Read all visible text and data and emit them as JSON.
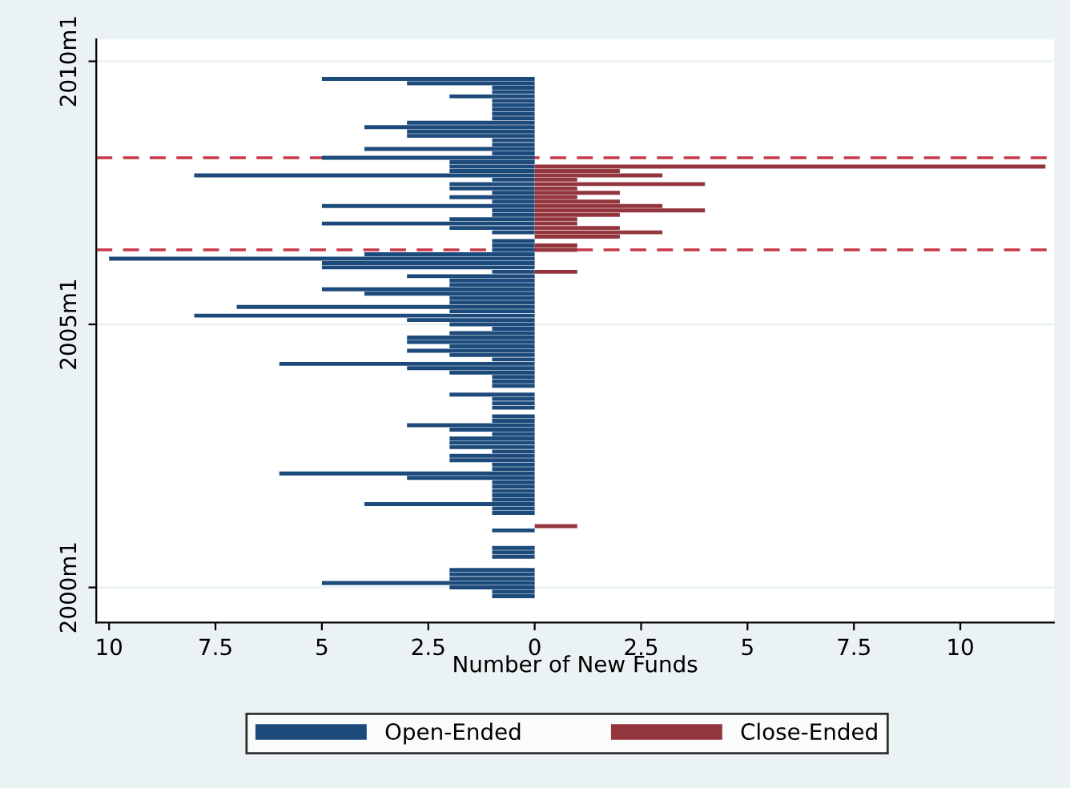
{
  "chart_data": {
    "type": "bar",
    "orientation": "horizontal",
    "xlabel": "Number of New Funds",
    "x": [
      "1999-11",
      "1999-12",
      "2000-01",
      "2000-02",
      "2000-03",
      "2000-04",
      "2000-05",
      "2000-06",
      "2000-07",
      "2000-08",
      "2000-09",
      "2000-10",
      "2000-11",
      "2000-12",
      "2001-01",
      "2001-02",
      "2001-03",
      "2001-04",
      "2001-05",
      "2001-06",
      "2001-07",
      "2001-08",
      "2001-09",
      "2001-10",
      "2001-11",
      "2001-12",
      "2002-01",
      "2002-02",
      "2002-03",
      "2002-04",
      "2002-05",
      "2002-06",
      "2002-07",
      "2002-08",
      "2002-09",
      "2002-10",
      "2002-11",
      "2002-12",
      "2003-01",
      "2003-02",
      "2003-03",
      "2003-04",
      "2003-05",
      "2003-06",
      "2003-07",
      "2003-08",
      "2003-09",
      "2003-10",
      "2003-11",
      "2003-12",
      "2004-01",
      "2004-02",
      "2004-03",
      "2004-04",
      "2004-05",
      "2004-06",
      "2004-07",
      "2004-08",
      "2004-09",
      "2004-10",
      "2004-11",
      "2004-12",
      "2005-01",
      "2005-02",
      "2005-03",
      "2005-04",
      "2005-05",
      "2005-06",
      "2005-07",
      "2005-08",
      "2005-09",
      "2005-10",
      "2005-11",
      "2005-12",
      "2006-01",
      "2006-02",
      "2006-03",
      "2006-04",
      "2006-05",
      "2006-06",
      "2006-07",
      "2006-08",
      "2006-09",
      "2006-10",
      "2006-11",
      "2006-12",
      "2007-01",
      "2007-02",
      "2007-03",
      "2007-04",
      "2007-05",
      "2007-06",
      "2007-07",
      "2007-08",
      "2007-09",
      "2007-10",
      "2007-11",
      "2007-12",
      "2008-01",
      "2008-02",
      "2008-03",
      "2008-04",
      "2008-05",
      "2008-06",
      "2008-07",
      "2008-08",
      "2008-09",
      "2008-10",
      "2008-11",
      "2008-12",
      "2009-01",
      "2009-02",
      "2009-03",
      "2009-04",
      "2009-05",
      "2009-06",
      "2009-07",
      "2009-08",
      "2009-09"
    ],
    "series": [
      {
        "name": "Open-Ended",
        "color": "#1c4a7a",
        "values": [
          -1,
          -1,
          -2,
          -5,
          -2,
          -2,
          -2,
          null,
          null,
          -1,
          -1,
          -1,
          null,
          null,
          null,
          -1,
          null,
          null,
          null,
          -1,
          -1,
          -4,
          -1,
          -1,
          -1,
          -1,
          -1,
          -3,
          -6,
          -1,
          -1,
          -2,
          -2,
          -1,
          -2,
          -2,
          -2,
          -1,
          -2,
          -3,
          -1,
          -1,
          null,
          -1,
          -1,
          -1,
          -2,
          null,
          -1,
          -1,
          -1,
          -2,
          -3,
          -6,
          -1,
          -2,
          -3,
          -2,
          -3,
          -3,
          -2,
          -1,
          -2,
          -3,
          -8,
          -2,
          -7,
          -2,
          -2,
          -4,
          -5,
          -2,
          -2,
          -3,
          -1,
          -5,
          -5,
          -10,
          -4,
          -1,
          -1,
          -1,
          null,
          -1,
          -2,
          -5,
          -2,
          -1,
          -1,
          -5,
          -1,
          -2,
          -1,
          -2,
          -2,
          -1,
          -8,
          -2,
          -2,
          -2,
          -5,
          -1,
          -4,
          -1,
          -1,
          -3,
          -3,
          -4,
          -3,
          -1,
          -1,
          -1,
          -1,
          -1,
          -2,
          -1,
          -1,
          -3,
          -5
        ]
      },
      {
        "name": "Close-Ended",
        "color": "#93353d",
        "values": [
          null,
          null,
          null,
          null,
          null,
          null,
          null,
          null,
          null,
          null,
          null,
          null,
          null,
          null,
          null,
          null,
          1,
          null,
          null,
          null,
          null,
          null,
          null,
          null,
          null,
          null,
          null,
          null,
          null,
          null,
          null,
          null,
          null,
          null,
          null,
          null,
          null,
          null,
          null,
          null,
          null,
          null,
          null,
          null,
          null,
          null,
          null,
          null,
          null,
          null,
          null,
          null,
          null,
          null,
          null,
          null,
          null,
          null,
          null,
          null,
          null,
          null,
          null,
          null,
          null,
          null,
          null,
          null,
          null,
          null,
          null,
          null,
          null,
          null,
          1,
          null,
          null,
          null,
          null,
          1,
          1,
          null,
          2,
          3,
          2,
          1,
          1,
          2,
          4,
          3,
          2,
          1,
          2,
          1,
          4,
          1,
          3,
          2,
          12,
          null,
          null,
          null,
          null,
          null,
          null,
          null,
          null,
          null,
          null,
          null,
          null,
          null,
          null,
          null,
          null,
          null,
          null,
          null,
          null
        ]
      }
    ],
    "xlim": [
      -10.3,
      12.2
    ],
    "xticks": [
      {
        "value": -10,
        "label": "10"
      },
      {
        "value": -7.5,
        "label": "7.5"
      },
      {
        "value": -5,
        "label": "5"
      },
      {
        "value": -2.5,
        "label": "2.5"
      },
      0,
      2.5,
      5,
      7.5,
      10
    ],
    "ylim": [
      "1999-05",
      "2010-06"
    ],
    "yticks": [
      {
        "value": "2000-01",
        "label": "2000m1"
      },
      {
        "value": "2005-01",
        "label": "2005m1"
      },
      {
        "value": "2010-01",
        "label": "2010m1"
      }
    ],
    "ref_lines": [
      {
        "axis": "y",
        "value": "2008-03",
        "label": null,
        "color": "#c8384a",
        "line_style": "dashed"
      },
      {
        "axis": "y",
        "value": "2006-06",
        "label": null,
        "color": "#c8384a",
        "line_style": "dashed"
      }
    ],
    "grid": "y",
    "legend": "bottom"
  }
}
